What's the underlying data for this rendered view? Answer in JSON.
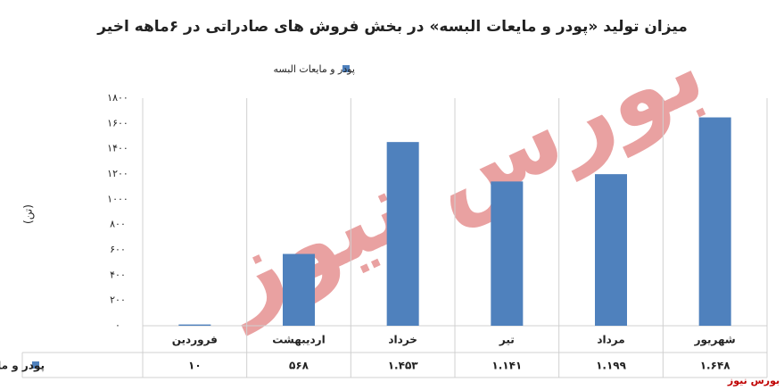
{
  "chart_data": {
    "type": "bar",
    "title": "میزان تولید «پودر و مایعات البسه» در بخش فروش های صادراتی در ۶ماهه اخیر",
    "y_label": "(تن)",
    "watermark": "بورس نیوز",
    "logo": "بورس نیوز",
    "categories": [
      "فروردین",
      "اردیبهشت",
      "خرداد",
      "تیر",
      "مرداد",
      "شهریور"
    ],
    "series": [
      {
        "name": "پودر و مایعات البسه",
        "color": "#4f81bd",
        "values": [
          10,
          568,
          1453,
          1141,
          1199,
          1648
        ],
        "value_labels": [
          "۱۰",
          "۵۶۸",
          "۱.۴۵۳",
          "۱.۱۴۱",
          "۱.۱۹۹",
          "۱.۶۴۸"
        ]
      }
    ],
    "ylim": [
      0,
      1800
    ],
    "yticks": [
      {
        "value": 0,
        "label": "۰"
      },
      {
        "value": 200,
        "label": "۲۰۰"
      },
      {
        "value": 400,
        "label": "۴۰۰"
      },
      {
        "value": 600,
        "label": "۶۰۰"
      },
      {
        "value": 800,
        "label": "۸۰۰"
      },
      {
        "value": 1000,
        "label": "۱۰۰۰"
      },
      {
        "value": 1200,
        "label": "۱۲۰۰"
      },
      {
        "value": 1400,
        "label": "۱۴۰۰"
      },
      {
        "value": 1600,
        "label": "۱۶۰۰"
      },
      {
        "value": 1800,
        "label": "۱۸۰۰"
      }
    ],
    "legend": "top"
  }
}
